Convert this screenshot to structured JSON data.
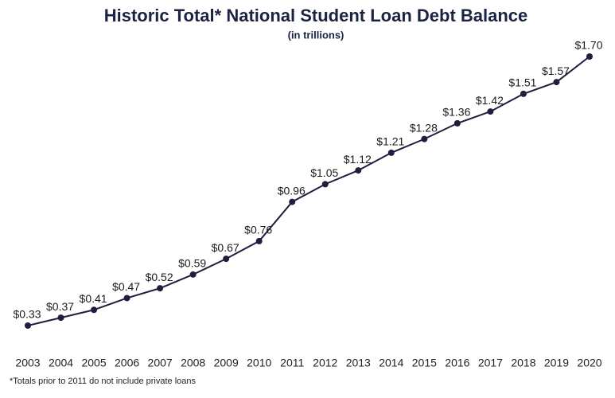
{
  "chart_data": {
    "type": "line",
    "title": "Historic Total* National Student Loan Debt Balance",
    "subtitle": "(in trillions)",
    "footnote": "*Totals prior to 2011 do not include private loans",
    "categories": [
      "2003",
      "2004",
      "2005",
      "2006",
      "2007",
      "2008",
      "2009",
      "2010",
      "2011",
      "2012",
      "2013",
      "2014",
      "2015",
      "2016",
      "2017",
      "2018",
      "2019",
      "2020"
    ],
    "series": [
      {
        "name": "Total National Student Loan Debt Balance",
        "color": "#1e1f3f",
        "values": [
          0.33,
          0.37,
          0.41,
          0.47,
          0.52,
          0.59,
          0.67,
          0.76,
          0.96,
          1.05,
          1.12,
          1.21,
          1.28,
          1.36,
          1.42,
          1.51,
          1.57,
          1.7
        ],
        "value_labels": [
          "$0.33",
          "$0.37",
          "$0.41",
          "$0.47",
          "$0.52",
          "$0.59",
          "$0.67",
          "$0.76",
          "$0.96",
          "$1.05",
          "$1.12",
          "$1.21",
          "$1.28",
          "$1.36",
          "$1.42",
          "$1.51",
          "$1.57",
          "$1.70"
        ]
      }
    ]
  }
}
